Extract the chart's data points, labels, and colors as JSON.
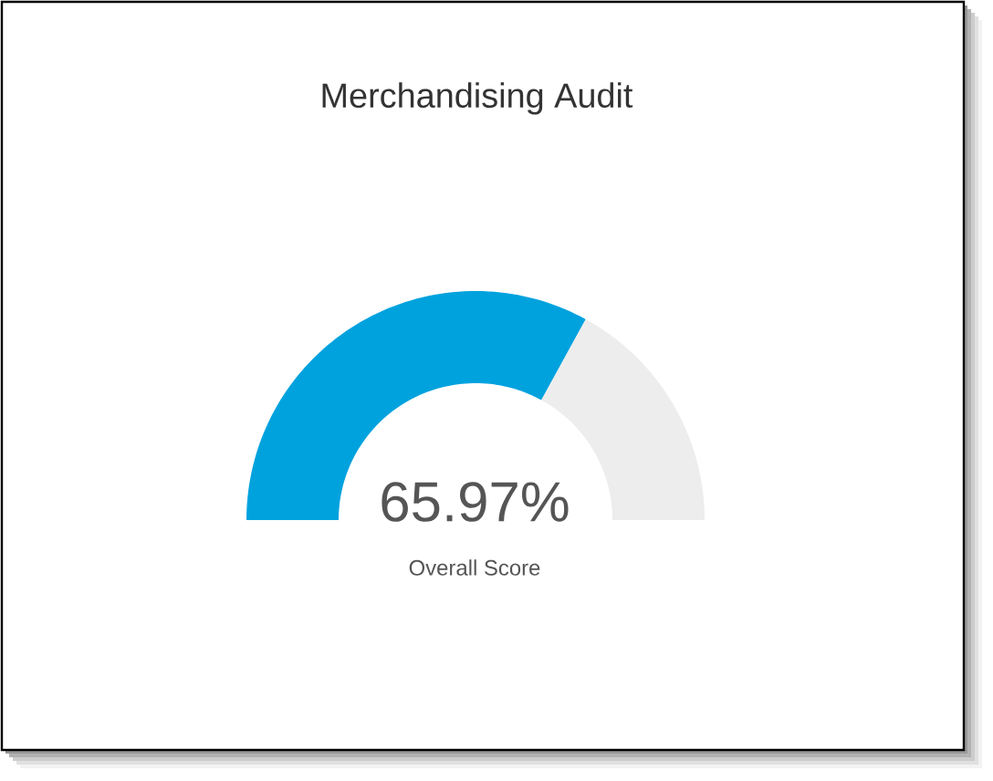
{
  "chart_data": {
    "type": "donut",
    "title": "Merchandising Audit",
    "categories": [
      null,
      null
    ],
    "values": [
      65.97,
      34.03
    ],
    "colors": [
      "#00a2de",
      "#ededed"
    ],
    "value_labels": [
      "65.97%",
      null
    ],
    "annotations": [
      "Overall Score"
    ]
  }
}
